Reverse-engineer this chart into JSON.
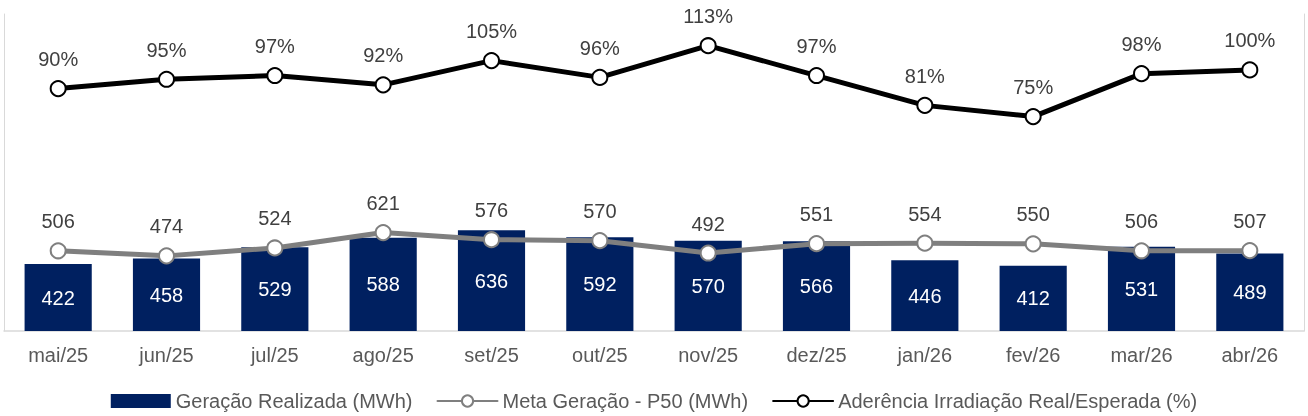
{
  "chart_data": {
    "type": "bar",
    "categories": [
      "mai/25",
      "jun/25",
      "jul/25",
      "ago/25",
      "set/25",
      "out/25",
      "nov/25",
      "dez/25",
      "jan/26",
      "fev/26",
      "mar/26",
      "abr/26"
    ],
    "series": [
      {
        "name": "Geração Realizada (MWh)",
        "color": "#002060",
        "values": [
          422,
          458,
          529,
          588,
          636,
          592,
          570,
          566,
          446,
          412,
          531,
          489
        ]
      },
      {
        "name": "Meta Geração - P50 (MWh)",
        "type": "line",
        "color": "#7f7f7f",
        "values": [
          506,
          474,
          524,
          621,
          576,
          570,
          492,
          551,
          554,
          550,
          506,
          507
        ]
      },
      {
        "name": "Aderência Irradiação Real/Esperada (%)",
        "type": "line",
        "axis": "y2",
        "color": "#000000",
        "values": [
          90,
          95,
          97,
          92,
          105,
          96,
          113,
          97,
          81,
          75,
          98,
          100
        ],
        "value_labels": [
          "90%",
          "95%",
          "97%",
          "92%",
          "105%",
          "96%",
          "113%",
          "97%",
          "81%",
          "75%",
          "98%",
          "100%"
        ]
      }
    ],
    "ylim": [
      0,
      2000
    ],
    "y2lim": [
      -40,
      130
    ],
    "data_labels": true,
    "legend": "bottom",
    "marker": "circle",
    "line_style": "solid",
    "tick_labels": "x",
    "grid": false
  }
}
